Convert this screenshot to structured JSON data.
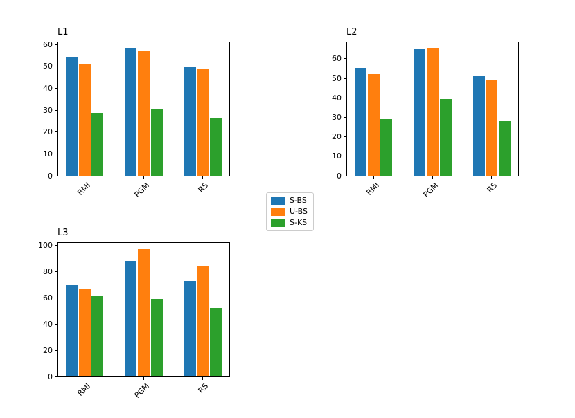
{
  "figure": {
    "background": "#ffffff"
  },
  "legend": {
    "position": "figure-center",
    "items": [
      {
        "label": "S-BS",
        "color": "#1f77b4"
      },
      {
        "label": "U-BS",
        "color": "#ff7f0e"
      },
      {
        "label": "S-KS",
        "color": "#2ca02c"
      }
    ]
  },
  "chart_data": [
    {
      "type": "bar",
      "title": "L1",
      "categories": [
        "RMI",
        "PGM",
        "RS"
      ],
      "series": [
        {
          "name": "S-BS",
          "color": "#1f77b4",
          "values": [
            54.0,
            58.0,
            49.7
          ]
        },
        {
          "name": "U-BS",
          "color": "#ff7f0e",
          "values": [
            51.2,
            57.2,
            48.8
          ]
        },
        {
          "name": "S-KS",
          "color": "#2ca02c",
          "values": [
            28.6,
            30.6,
            26.7
          ]
        }
      ],
      "xlabel": "",
      "ylabel": "",
      "ylim": [
        0,
        61
      ],
      "yticks": [
        0,
        10,
        20,
        30,
        40,
        50,
        60
      ],
      "grid": false
    },
    {
      "type": "bar",
      "title": "L2",
      "categories": [
        "RMI",
        "PGM",
        "RS"
      ],
      "series": [
        {
          "name": "S-BS",
          "color": "#1f77b4",
          "values": [
            55.4,
            64.8,
            51.0
          ]
        },
        {
          "name": "U-BS",
          "color": "#ff7f0e",
          "values": [
            52.3,
            65.2,
            48.9
          ]
        },
        {
          "name": "S-KS",
          "color": "#2ca02c",
          "values": [
            29.0,
            39.4,
            28.0
          ]
        }
      ],
      "xlabel": "",
      "ylabel": "",
      "ylim": [
        0,
        68.5
      ],
      "yticks": [
        0,
        10,
        20,
        30,
        40,
        50,
        60
      ],
      "grid": false
    },
    {
      "type": "bar",
      "title": "L3",
      "categories": [
        "RMI",
        "PGM",
        "RS"
      ],
      "series": [
        {
          "name": "S-BS",
          "color": "#1f77b4",
          "values": [
            70.0,
            88.0,
            73.0
          ]
        },
        {
          "name": "U-BS",
          "color": "#ff7f0e",
          "values": [
            66.5,
            97.2,
            84.0
          ]
        },
        {
          "name": "S-KS",
          "color": "#2ca02c",
          "values": [
            62.0,
            59.2,
            52.3
          ]
        }
      ],
      "xlabel": "",
      "ylabel": "",
      "ylim": [
        0,
        102
      ],
      "yticks": [
        0,
        20,
        40,
        60,
        80,
        100
      ],
      "grid": false
    }
  ]
}
